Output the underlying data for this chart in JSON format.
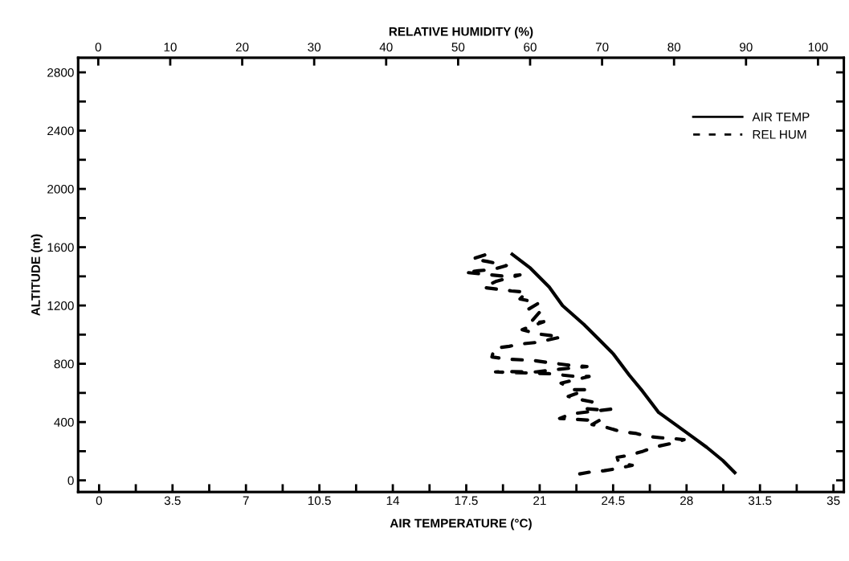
{
  "chart_data": {
    "type": "line",
    "xlabel": "AIR TEMPERATURE (°C)",
    "x2label": "RELATIVE HUMIDITY (%)",
    "ylabel": "ALTITUDE (m)",
    "xlim": [
      -1,
      35.5
    ],
    "x2lim": [
      -2.8,
      103.6
    ],
    "ylim": [
      -80,
      2900
    ],
    "xticks": [
      0,
      {
        "value": 1.75,
        "label": null
      },
      3.5,
      {
        "value": 5.25,
        "label": null
      },
      7,
      {
        "value": 8.75,
        "label": null
      },
      10.5,
      {
        "value": 12.25,
        "label": null
      },
      14,
      {
        "value": 15.75,
        "label": null
      },
      17.5,
      {
        "value": 19.25,
        "label": null
      },
      21,
      {
        "value": 22.75,
        "label": null
      },
      24.5,
      {
        "value": 26.25,
        "label": null
      },
      28,
      {
        "value": 29.75,
        "label": null
      },
      31.5,
      {
        "value": 33.25,
        "label": null
      },
      35
    ],
    "x2ticks": [
      0,
      10,
      20,
      30,
      40,
      50,
      60,
      70,
      80,
      90,
      100
    ],
    "yticks": [
      0,
      {
        "value": 200,
        "label": null
      },
      400,
      {
        "value": 600,
        "label": null
      },
      800,
      {
        "value": 1000,
        "label": null
      },
      1200,
      {
        "value": 1400,
        "label": null
      },
      1600,
      {
        "value": 1800,
        "label": null
      },
      2000,
      {
        "value": 2200,
        "label": null
      },
      2400,
      {
        "value": 2600,
        "label": null
      },
      2800
    ],
    "grid": false,
    "legend": "top right",
    "marker": "none",
    "series": [
      {
        "name": "AIR TEMP",
        "color": "#000000",
        "line_style": "solid",
        "x": [
          19.69,
          20.56,
          21.45,
          22.09,
          23.1,
          23.87,
          24.5,
          25.27,
          25.9,
          26.67,
          27.56,
          28.26,
          28.96,
          29.73,
          30.3
        ],
        "values": [
          1551,
          1456,
          1327,
          1199,
          1071,
          961,
          869,
          722,
          612,
          466,
          374,
          301,
          227,
          136,
          53
        ]
      },
      {
        "name": "REL HUM",
        "color": "#000000",
        "line_style": "dashed",
        "axis": "x2",
        "x": [
          53.7,
          52.0,
          54.1,
          56.7,
          54.8,
          52.8,
          50.9,
          56.3,
          58.6,
          55.2,
          53.5,
          57.4,
          59.5,
          58.6,
          61.2,
          59.7,
          61.3,
          60.0,
          61.9,
          58.9,
          60.8,
          62.8,
          64.3,
          60.8,
          58.9,
          57.1,
          55.0,
          54.7,
          56.7,
          60.4,
          62.3,
          66.0,
          67.9,
          64.1,
          60.8,
          56.9,
          55.2,
          62.6,
          66.4,
          68.2,
          64.3,
          66.0,
          67.9,
          65.3,
          66.7,
          68.6,
          67.5,
          69.7,
          71.2,
          65.8,
          64.1,
          67.9,
          69.7,
          68.6,
          70.5,
          72.7,
          74.6,
          76.4,
          78.3,
          80.1,
          81.4,
          79.8,
          77.5,
          75.7,
          73.8,
          72.1,
          72.3,
          74.2,
          72.1,
          70.3,
          68.6,
          66.9
        ],
        "values": [
          1547,
          1520,
          1502,
          1474,
          1447,
          1438,
          1428,
          1401,
          1410,
          1364,
          1324,
          1300,
          1291,
          1245,
          1217,
          1172,
          1153,
          1080,
          1089,
          1034,
          1007,
          994,
          983,
          946,
          937,
          920,
          906,
          847,
          832,
          823,
          810,
          787,
          781,
          763,
          744,
          746,
          744,
          732,
          713,
          713,
          667,
          622,
          622,
          576,
          557,
          539,
          493,
          484,
          488,
          457,
          425,
          414,
          414,
          383,
          365,
          334,
          323,
          301,
          292,
          286,
          279,
          255,
          231,
          200,
          172,
          158,
          121,
          103,
          81,
          66,
          59,
          44
        ]
      }
    ]
  }
}
